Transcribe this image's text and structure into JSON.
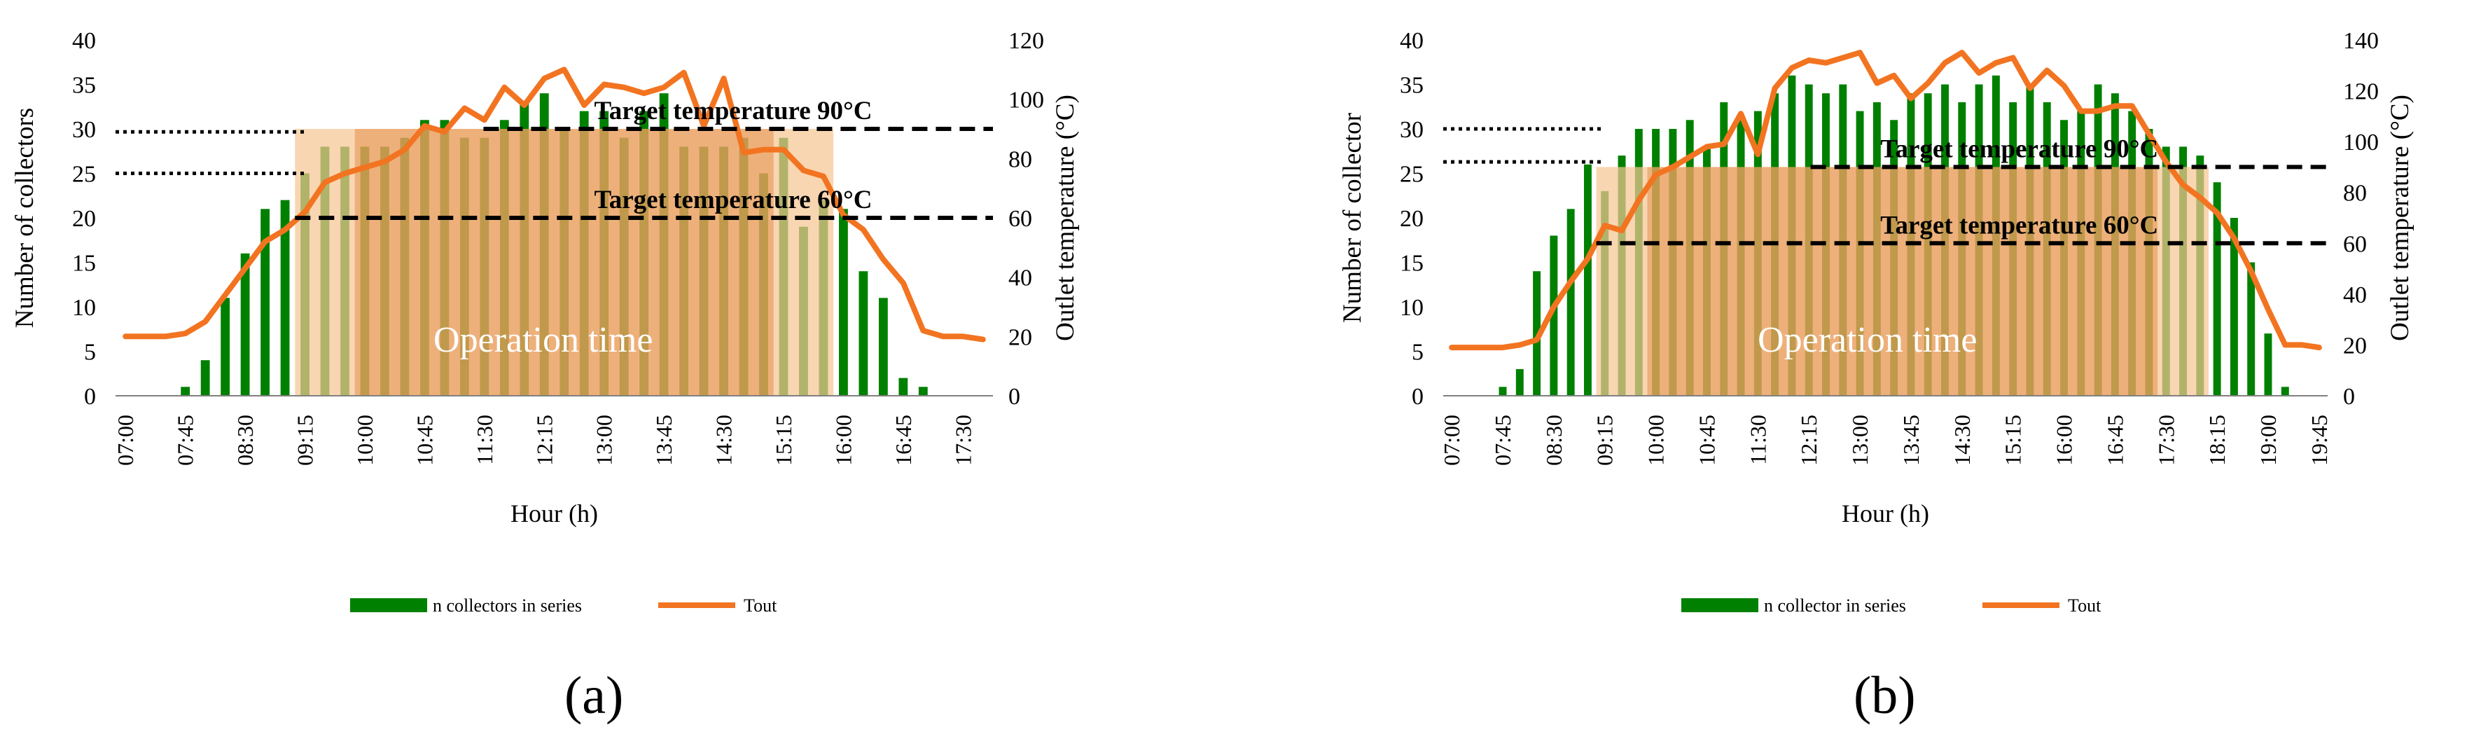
{
  "chart_data": [
    {
      "type": "bar+line",
      "panel_label": "(a)",
      "overlay_label": "Operation time",
      "target_labels": [
        "Target temperature 90°C",
        "Target temperature 60°C"
      ],
      "xlabel": "Hour (h)",
      "ylabel_left": "Number of collectors",
      "ylabel_right": "Outlet temperature (°C)",
      "ylim_left": [
        0,
        40
      ],
      "yticks_left": [
        0,
        5,
        10,
        15,
        20,
        25,
        30,
        35,
        40
      ],
      "ylim_right": [
        0,
        120
      ],
      "yticks_right": [
        0,
        20,
        40,
        60,
        80,
        100,
        120
      ],
      "x_start": "07:00",
      "x_step_minutes": 15,
      "x_ticks": [
        "07:00",
        "07:45",
        "08:30",
        "09:15",
        "10:00",
        "10:45",
        "11:30",
        "12:15",
        "13:00",
        "13:45",
        "14:30",
        "15:15",
        "16:00",
        "16:45",
        "17:30"
      ],
      "bar_series_name": "n collectors in series",
      "line_series_name": "Tout",
      "bar_values": [
        0,
        0,
        0,
        1,
        4,
        11,
        16,
        21,
        22,
        25,
        28,
        28,
        28,
        28,
        29,
        31,
        31,
        29,
        29,
        31,
        33,
        34,
        30,
        32,
        32,
        29,
        32,
        34,
        28,
        28,
        28,
        29,
        25,
        29,
        19,
        22,
        21,
        14,
        11,
        2,
        1,
        0,
        0
      ],
      "line_values": [
        20,
        20,
        20,
        21,
        25,
        34,
        43,
        52,
        56,
        62,
        72,
        75,
        77,
        79,
        83,
        91,
        89,
        97,
        93,
        104,
        98,
        107,
        110,
        98,
        105,
        104,
        102,
        104,
        109,
        91,
        107,
        82,
        83,
        83,
        76,
        74,
        61,
        56,
        46,
        38,
        22,
        20,
        20,
        19
      ],
      "target_levels": [
        90,
        60
      ],
      "dotted_levels": [
        89,
        75
      ],
      "operation_window": [
        "09:15",
        "16:00"
      ],
      "colors": {
        "bar": "#008000",
        "line": "#F27421",
        "shade": "#F7C694",
        "dark_shade": "#D96A14"
      }
    },
    {
      "type": "bar+line",
      "panel_label": "(b)",
      "overlay_label": "Operation time",
      "target_labels": [
        "Target temperature 90°C",
        "Target temperature 60°C"
      ],
      "xlabel": "Hour (h)",
      "ylabel_left": "Number of collector",
      "ylabel_right": "Outlet temperature (°C)",
      "ylim_left": [
        0,
        40
      ],
      "yticks_left": [
        0,
        5,
        10,
        15,
        20,
        25,
        30,
        35,
        40
      ],
      "ylim_right": [
        0,
        140
      ],
      "yticks_right": [
        0,
        20,
        40,
        60,
        80,
        100,
        120,
        140
      ],
      "x_start": "07:00",
      "x_step_minutes": 15,
      "x_ticks": [
        "07:00",
        "07:45",
        "08:30",
        "09:15",
        "10:00",
        "10:45",
        "11:30",
        "12:15",
        "13:00",
        "13:45",
        "14:30",
        "15:15",
        "16:00",
        "16:45",
        "17:30",
        "18:15",
        "19:00",
        "19:45"
      ],
      "bar_series_name": "n collector in series",
      "line_series_name": "Tout",
      "bar_values": [
        0,
        0,
        0,
        1,
        3,
        14,
        18,
        21,
        26,
        23,
        27,
        30,
        30,
        30,
        31,
        28,
        33,
        31,
        32,
        34,
        36,
        35,
        34,
        35,
        32,
        33,
        31,
        34,
        34,
        35,
        33,
        35,
        36,
        33,
        35,
        33,
        31,
        32,
        35,
        34,
        32,
        30,
        28,
        28,
        27,
        24,
        20,
        15,
        7,
        1,
        0
      ],
      "line_values": [
        19,
        19,
        19,
        19,
        20,
        22,
        35,
        45,
        54,
        67,
        65,
        77,
        87,
        90,
        94,
        98,
        99,
        111,
        95,
        121,
        129,
        132,
        131,
        133,
        135,
        123,
        126,
        117,
        123,
        131,
        135,
        127,
        131,
        133,
        121,
        128,
        122,
        112,
        112,
        114,
        114,
        103,
        92,
        83,
        78,
        72,
        62,
        49,
        34,
        20,
        20,
        19
      ],
      "target_levels": [
        90,
        60
      ],
      "dotted_levels": [
        105,
        92
      ],
      "operation_window": [
        "09:15",
        "18:15"
      ],
      "colors": {
        "bar": "#008000",
        "line": "#F27421",
        "shade": "#F7C694",
        "dark_shade": "#D96A14"
      }
    }
  ]
}
